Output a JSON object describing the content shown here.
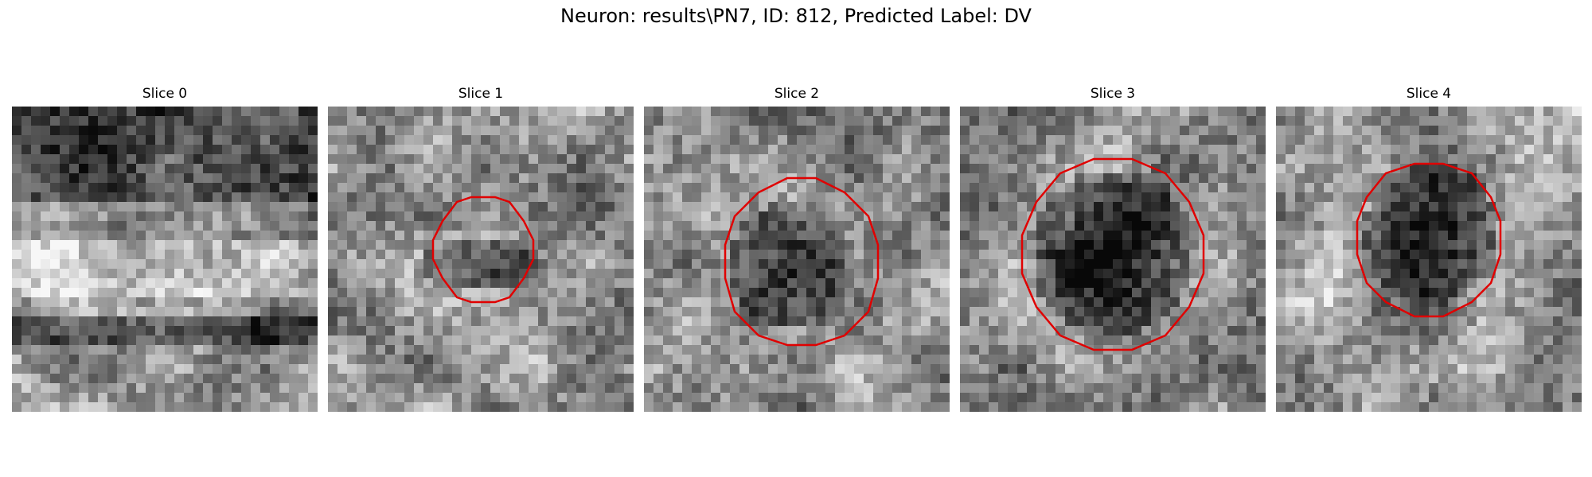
{
  "figure": {
    "title": "Neuron: results\\PN7, ID: 812, Predicted Label: DV"
  },
  "panels": [
    {
      "title": "Slice 0",
      "seed": 11,
      "contour": null
    },
    {
      "title": "Slice 1",
      "seed": 23,
      "contour": {
        "color": "#e00000",
        "center_dark": true
      }
    },
    {
      "title": "Slice 2",
      "seed": 37,
      "contour": {
        "color": "#e00000",
        "center_dark": true
      }
    },
    {
      "title": "Slice 3",
      "seed": 53,
      "contour": {
        "color": "#e00000",
        "center_dark": true
      }
    },
    {
      "title": "Slice 4",
      "seed": 71,
      "contour": {
        "color": "#e00000",
        "center_dark": true
      }
    }
  ],
  "colors": {
    "background": "#ffffff",
    "contour": "#e00000",
    "colormap": "gray"
  }
}
